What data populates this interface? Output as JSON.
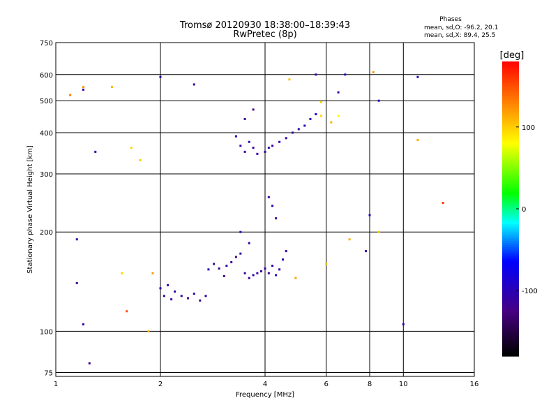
{
  "chart_data": {
    "type": "scatter",
    "title": "Tromsø 20120930 18:38:00–18:39:43",
    "subtitle": "RwPretec (8p)",
    "stats": {
      "heading": "Phases",
      "line1": "mean, sd,O: -96.2, 20.1",
      "line2": "mean, sd,X:  89.4, 25.5"
    },
    "xlabel": "Frequency [MHz]",
    "ylabel": "Stationary phase Virtual Height [km]",
    "x_scale": "log",
    "y_scale": "log",
    "xlim": [
      1,
      16
    ],
    "ylim": [
      73,
      750
    ],
    "x_ticks": [
      1,
      2,
      4,
      6,
      8,
      10,
      16
    ],
    "y_ticks": [
      75,
      100,
      200,
      300,
      400,
      500,
      600,
      750
    ],
    "grid": true,
    "colorbar": {
      "label": "[deg]",
      "range": [
        -180,
        180
      ],
      "ticks": [
        100,
        0,
        -100
      ]
    },
    "series": [
      {
        "points": [
          [
            2.0,
            135,
            -110
          ],
          [
            2.05,
            128,
            -115
          ],
          [
            2.1,
            138,
            -105
          ],
          [
            2.15,
            125,
            -118
          ],
          [
            2.2,
            132,
            -112
          ],
          [
            2.3,
            128,
            -108
          ],
          [
            2.4,
            126,
            -116
          ],
          [
            2.5,
            130,
            -110
          ],
          [
            2.6,
            124,
            -114
          ],
          [
            2.7,
            128,
            -106
          ],
          [
            2.75,
            154,
            -104
          ],
          [
            2.85,
            160,
            -112
          ],
          [
            2.95,
            155,
            -118
          ],
          [
            3.05,
            147,
            -122
          ],
          [
            3.1,
            158,
            -108
          ],
          [
            3.2,
            162,
            -115
          ],
          [
            3.3,
            168,
            -125
          ],
          [
            3.4,
            172,
            -110
          ],
          [
            3.5,
            150,
            -112
          ],
          [
            3.6,
            145,
            -118
          ],
          [
            3.7,
            148,
            -105
          ],
          [
            3.8,
            150,
            -110
          ],
          [
            3.9,
            152,
            -114
          ],
          [
            4.0,
            155,
            -108
          ],
          [
            4.1,
            150,
            -116
          ],
          [
            4.2,
            158,
            -112
          ],
          [
            4.3,
            148,
            -104
          ],
          [
            4.4,
            154,
            -110
          ],
          [
            4.5,
            165,
            -106
          ],
          [
            4.6,
            175,
            -112
          ],
          [
            3.3,
            390,
            -102
          ],
          [
            3.4,
            365,
            -110
          ],
          [
            3.5,
            350,
            -120
          ],
          [
            3.6,
            375,
            -108
          ],
          [
            3.7,
            360,
            -115
          ],
          [
            3.8,
            345,
            -112
          ],
          [
            4.0,
            350,
            -104
          ],
          [
            4.1,
            360,
            -108
          ],
          [
            4.2,
            365,
            -110
          ],
          [
            4.4,
            375,
            -106
          ],
          [
            4.6,
            385,
            -112
          ],
          [
            4.8,
            400,
            -108
          ],
          [
            5.0,
            410,
            -104
          ],
          [
            5.2,
            420,
            -100
          ],
          [
            5.4,
            440,
            -95
          ],
          [
            5.6,
            455,
            -90
          ],
          [
            3.5,
            440,
            -118
          ],
          [
            3.7,
            470,
            -125
          ],
          [
            5.6,
            600,
            -112
          ],
          [
            6.5,
            530,
            -110
          ],
          [
            6.8,
            600,
            -108
          ],
          [
            5.8,
            450,
            95
          ],
          [
            6.2,
            430,
            110
          ],
          [
            6.5,
            450,
            80
          ],
          [
            4.1,
            255,
            -112
          ],
          [
            4.2,
            240,
            -108
          ],
          [
            4.3,
            220,
            -115
          ],
          [
            3.4,
            200,
            -105
          ],
          [
            3.6,
            185,
            -112
          ],
          [
            1.15,
            190,
            -110
          ],
          [
            1.15,
            140,
            -120
          ],
          [
            1.2,
            105,
            -108
          ],
          [
            1.2,
            540,
            -112
          ],
          [
            1.25,
            80,
            -118
          ],
          [
            1.3,
            350,
            -110
          ],
          [
            8.5,
            500,
            -95
          ],
          [
            11.0,
            590,
            -100
          ],
          [
            10.0,
            105,
            -108
          ],
          [
            7.8,
            175,
            -112
          ],
          [
            8.0,
            225,
            -100
          ],
          [
            1.2,
            550,
            120
          ],
          [
            1.45,
            550,
            110
          ],
          [
            1.65,
            360,
            95
          ],
          [
            1.75,
            330,
            100
          ],
          [
            2.0,
            590,
            -110
          ],
          [
            2.5,
            560,
            -112
          ],
          [
            4.7,
            580,
            105
          ],
          [
            5.8,
            495,
            95
          ],
          [
            11.0,
            380,
            110
          ],
          [
            13.0,
            245,
            160
          ],
          [
            1.9,
            150,
            120
          ],
          [
            4.9,
            145,
            115
          ],
          [
            6.0,
            160,
            100
          ],
          [
            1.6,
            115,
            150
          ],
          [
            1.85,
            100,
            110
          ],
          [
            8.2,
            610,
            120
          ],
          [
            8.5,
            200,
            100
          ],
          [
            7.0,
            190,
            110
          ],
          [
            1.1,
            520,
            130
          ],
          [
            1.55,
            150,
            95
          ]
        ]
      }
    ]
  }
}
